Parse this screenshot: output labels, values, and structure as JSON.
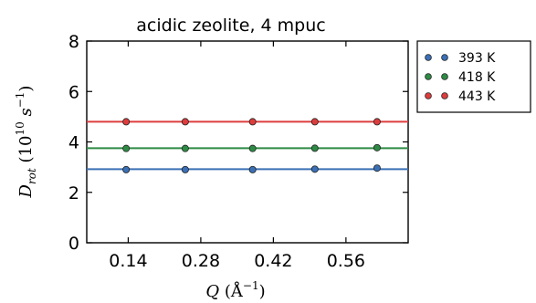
{
  "chart_data": {
    "type": "line",
    "title": "acidic zeolite, 4 mpuc",
    "xlabel": {
      "symbol": "Q",
      "unit": "(Å",
      "exp": "−1",
      "close": ")"
    },
    "ylabel": {
      "symbol": "D",
      "sub": "rot",
      "unit": "(10",
      "exp1": "10",
      "s": "s",
      "exp2": "−1",
      "close": ")"
    },
    "xlim": [
      0.06,
      0.68
    ],
    "ylim": [
      0,
      8
    ],
    "x_ticks": [
      "0.14",
      "0.28",
      "0.42",
      "0.56"
    ],
    "x_tick_values": [
      0.14,
      0.28,
      0.42,
      0.56
    ],
    "y_ticks": [
      "0",
      "2",
      "4",
      "6",
      "8"
    ],
    "y_tick_values": [
      0,
      2,
      4,
      6,
      8
    ],
    "x": [
      0.136,
      0.25,
      0.38,
      0.5,
      0.62
    ],
    "series": [
      {
        "name": "393 K",
        "color": "#3b70b5",
        "values": [
          2.9,
          2.9,
          2.9,
          2.92,
          2.96
        ],
        "fit": 2.92
      },
      {
        "name": "418 K",
        "color": "#2e8b45",
        "values": [
          3.74,
          3.74,
          3.74,
          3.75,
          3.77
        ],
        "fit": 3.75
      },
      {
        "name": "443 K",
        "color": "#de3c3c",
        "values": [
          4.8,
          4.8,
          4.8,
          4.8,
          4.8
        ],
        "fit": 4.8
      }
    ],
    "legend_position": "outside-right",
    "grid": false
  }
}
